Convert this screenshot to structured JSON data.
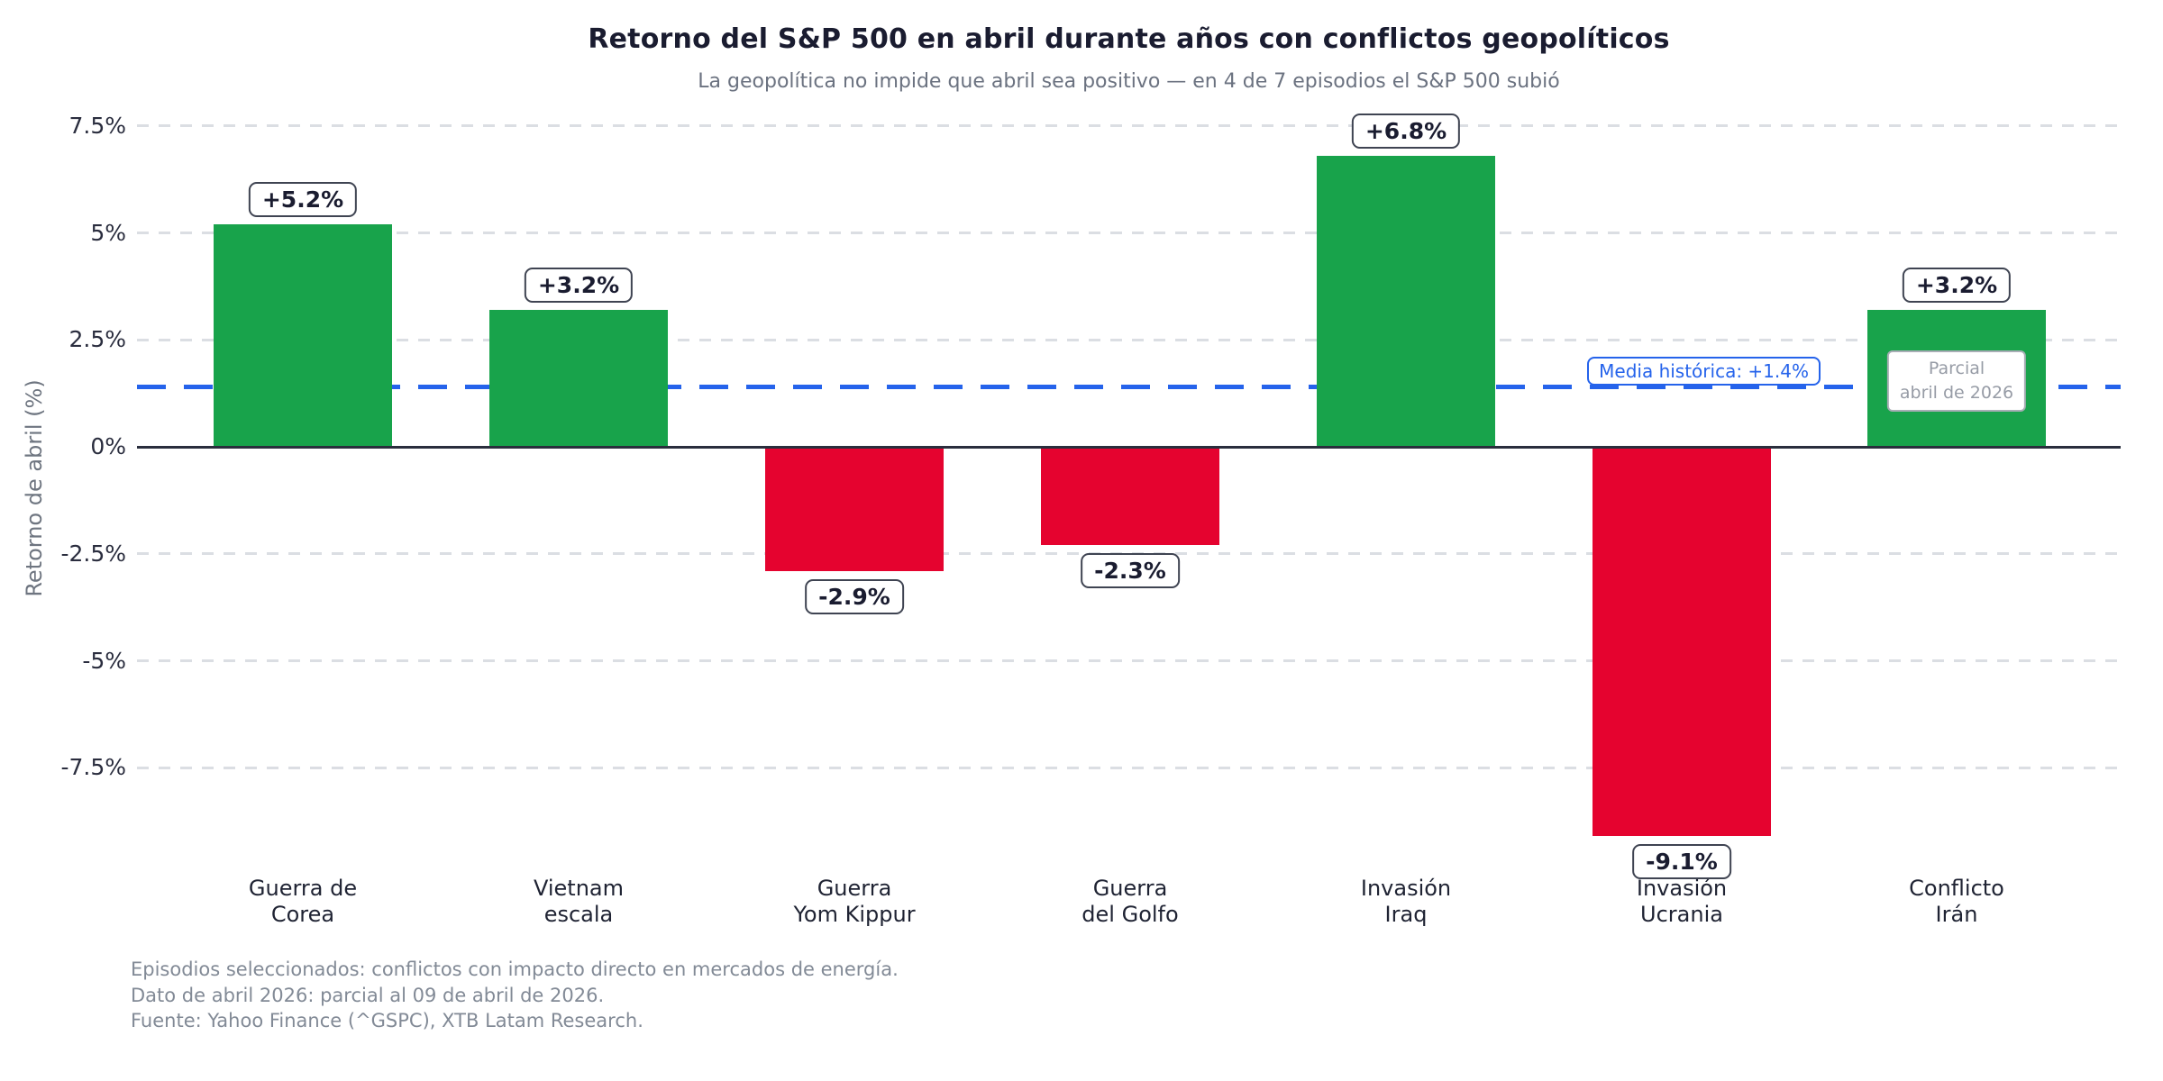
{
  "chart_data": {
    "type": "bar",
    "title": "Retorno del S&P 500 en abril durante años con conflictos geopolíticos",
    "subtitle": "La geopolítica no impide que abril sea positivo — en 4 de 7 episodios el S&P 500 subió",
    "ylabel": "Retorno de abril (%)",
    "ylim": [
      -10.5,
      8.5
    ],
    "grid": "horizontal-dashed",
    "legend": "none",
    "yticks": [
      {
        "value": 7.5,
        "label": "7.5%"
      },
      {
        "value": 5,
        "label": "5%"
      },
      {
        "value": 2.5,
        "label": "2.5%"
      },
      {
        "value": 0,
        "label": "0%"
      },
      {
        "value": -2.5,
        "label": "-2.5%"
      },
      {
        "value": -5,
        "label": "-5%"
      },
      {
        "value": -7.5,
        "label": "-7.5%"
      }
    ],
    "bars": [
      {
        "category": "Guerra de\nCorea",
        "value": 5.2,
        "label": "+5.2%"
      },
      {
        "category": "Vietnam\nescala",
        "value": 3.2,
        "label": "+3.2%"
      },
      {
        "category": "Guerra\nYom Kippur",
        "value": -2.9,
        "label": "-2.9%"
      },
      {
        "category": "Guerra\ndel Golfo",
        "value": -2.3,
        "label": "-2.3%"
      },
      {
        "category": "Invasión\nIraq",
        "value": 6.8,
        "label": "+6.8%"
      },
      {
        "category": "Invasión\nUcrania",
        "value": -9.1,
        "label": "-9.1%"
      },
      {
        "category": "Conflicto\nIrán",
        "value": 3.2,
        "label": "+3.2%",
        "annotation": "Parcial\nabril de 2026"
      }
    ],
    "reference_line": {
      "value": 1.4,
      "label": "Media histórica: +1.4%",
      "style": "dashed"
    },
    "colors": {
      "positive": "#18a34b",
      "negative": "#e5032f",
      "reference": "#2563eb",
      "title": "#1a1c30",
      "subtitle": "#6b7280",
      "footnote": "#828a96"
    },
    "footnotes": [
      "Episodios seleccionados: conflictos con impacto directo en mercados de energía.",
      "Dato de abril 2026: parcial al 09 de abril de 2026.",
      "Fuente: Yahoo Finance (^GSPC), XTB Latam Research."
    ]
  }
}
